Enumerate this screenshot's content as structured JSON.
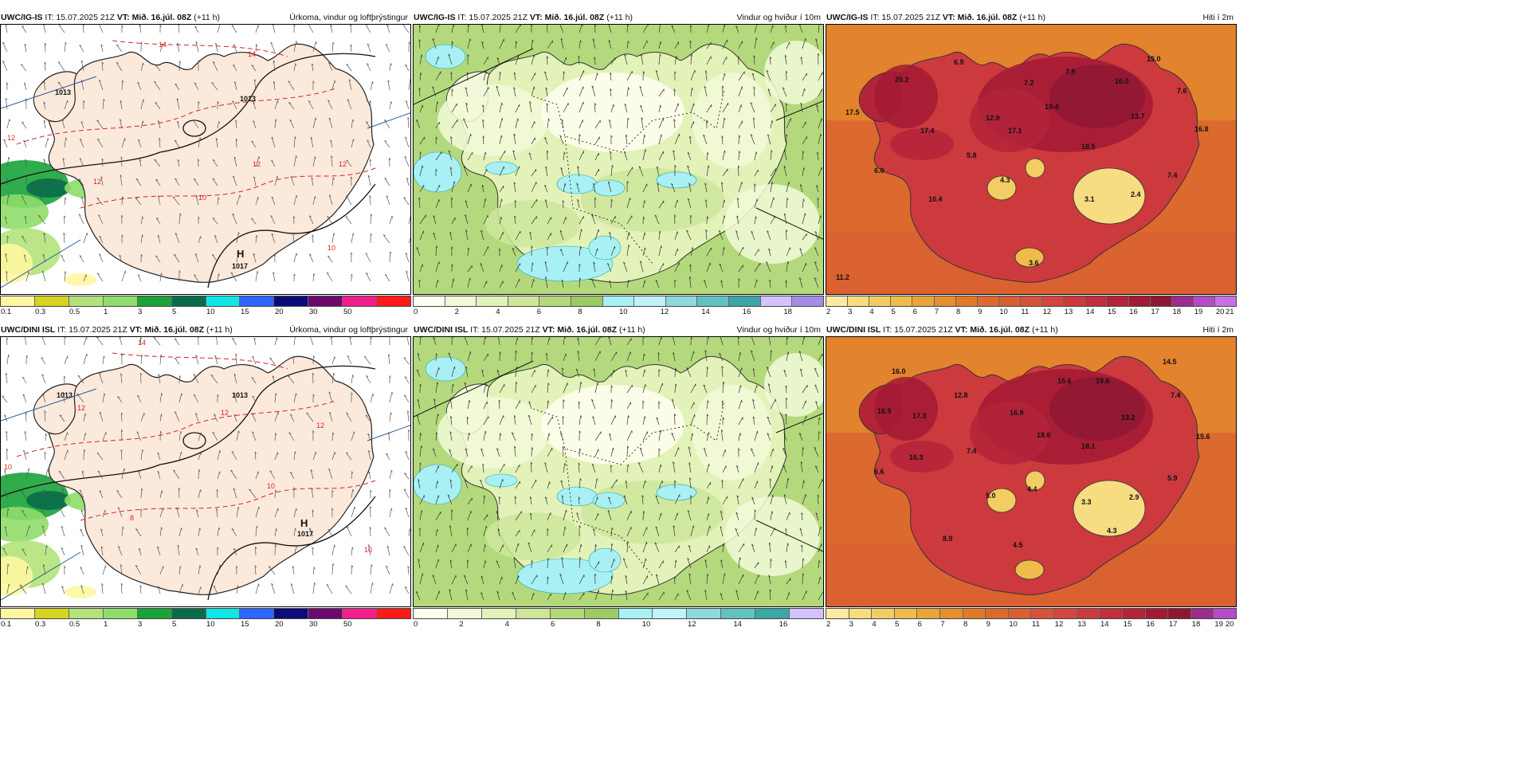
{
  "panels": [
    {
      "id": "p1",
      "model": "UWC/IG-IS",
      "it": "IT: 15.07.2025 21Z",
      "vt_label": "VT:",
      "vt": "Mið. 16.júl. 08Z",
      "lead": "(+11 h)",
      "title": "Úrkoma, vindur og loftþrýstingur",
      "kind": "precip",
      "colors": [
        "#fff7a0",
        "#d7d31f",
        "#b2e37a",
        "#8fdd6a",
        "#19a33a",
        "#0a6b4a",
        "#10e6e6",
        "#2e64ff",
        "#0b0b7a",
        "#6b0a6b",
        "#f21e8c",
        "#ff1a1a"
      ],
      "ticks": [
        "0.1",
        "0.3",
        "0.5",
        "1",
        "3",
        "5",
        "10",
        "15",
        "20",
        "30",
        "50"
      ],
      "labels": [
        {
          "text": "1013",
          "x": 300,
          "y": 96,
          "c": "#111",
          "b": true
        },
        {
          "text": "1013",
          "x": 68,
          "y": 88,
          "c": "#111",
          "b": true
        },
        {
          "text": "14",
          "x": 198,
          "y": 28,
          "c": "#d22"
        },
        {
          "text": "14",
          "x": 310,
          "y": 40,
          "c": "#d22"
        },
        {
          "text": "12",
          "x": 8,
          "y": 145,
          "c": "#d22"
        },
        {
          "text": "12",
          "x": 316,
          "y": 178,
          "c": "#d22"
        },
        {
          "text": "12",
          "x": 424,
          "y": 178,
          "c": "#d22"
        },
        {
          "text": "12",
          "x": 116,
          "y": 200,
          "c": "#d22"
        },
        {
          "text": "10",
          "x": 410,
          "y": 283,
          "c": "#d22"
        },
        {
          "text": "10",
          "x": 248,
          "y": 220,
          "c": "#d22"
        },
        {
          "text": "H",
          "x": 296,
          "y": 292,
          "c": "#111",
          "b": true,
          "s": 13
        },
        {
          "text": "1017",
          "x": 290,
          "y": 306,
          "c": "#111",
          "b": true
        }
      ]
    },
    {
      "id": "p2",
      "model": "UWC/IG-IS",
      "it": "IT: 15.07.2025 21Z",
      "vt_label": "VT:",
      "vt": "Mið. 16.júl. 08Z",
      "lead": "(+11 h)",
      "title": "Vindur og hviður í 10m",
      "kind": "wind",
      "colors": [
        "#fffff0",
        "#f2f9d8",
        "#e3f2b8",
        "#cde69a",
        "#b3d97c",
        "#9ccb64",
        "#a9f0f5",
        "#bff3f7",
        "#8fd9dc",
        "#62c2c2",
        "#3aa7a6",
        "#d4c2ff",
        "#a58be6"
      ],
      "ticks": [
        "0",
        "2",
        "4",
        "6",
        "8",
        "10",
        "12",
        "14",
        "16",
        "18"
      ],
      "labels": []
    },
    {
      "id": "p3",
      "model": "UWC/IG-IS",
      "it": "IT: 15.07.2025 21Z",
      "vt_label": "VT:",
      "vt": "Mið. 16.júl. 08Z",
      "lead": "(+11 h)",
      "title": "Hiti í 2m",
      "kind": "temp",
      "colors": [
        "#fbe9a5",
        "#f7dc82",
        "#f3cd63",
        "#efbb4b",
        "#eaa53a",
        "#e58f2e",
        "#e07a2a",
        "#dc6a2e",
        "#d95e34",
        "#d6523a",
        "#d2463d",
        "#cc3a3e",
        "#c12e3c",
        "#b32438",
        "#a31a34",
        "#8e1732",
        "#9b2e8c",
        "#b24cc7",
        "#c770e6"
      ],
      "ticks": [
        "2",
        "3",
        "4",
        "5",
        "6",
        "7",
        "8",
        "9",
        "10",
        "11",
        "12",
        "13",
        "14",
        "15",
        "16",
        "17",
        "18",
        "19",
        "20",
        "21"
      ],
      "labels": [
        {
          "text": "6.9",
          "x": 160,
          "y": 50,
          "c": "#111",
          "b": true
        },
        {
          "text": "20.2",
          "x": 86,
          "y": 72,
          "c": "#111",
          "b": true
        },
        {
          "text": "7.5",
          "x": 300,
          "y": 62,
          "c": "#111",
          "b": true
        },
        {
          "text": "15.0",
          "x": 402,
          "y": 46,
          "c": "#111",
          "b": true
        },
        {
          "text": "7.2",
          "x": 248,
          "y": 76,
          "c": "#111",
          "b": true
        },
        {
          "text": "16.0",
          "x": 362,
          "y": 74,
          "c": "#111",
          "b": true
        },
        {
          "text": "7.6",
          "x": 440,
          "y": 86,
          "c": "#111",
          "b": true
        },
        {
          "text": "17.5",
          "x": 24,
          "y": 113,
          "c": "#111",
          "b": true
        },
        {
          "text": "19.4",
          "x": 274,
          "y": 106,
          "c": "#111",
          "b": true
        },
        {
          "text": "12.9",
          "x": 200,
          "y": 120,
          "c": "#111",
          "b": true
        },
        {
          "text": "13.7",
          "x": 382,
          "y": 118,
          "c": "#111",
          "b": true
        },
        {
          "text": "17.4",
          "x": 118,
          "y": 136,
          "c": "#111",
          "b": true
        },
        {
          "text": "17.1",
          "x": 228,
          "y": 136,
          "c": "#111",
          "b": true
        },
        {
          "text": "16.8",
          "x": 462,
          "y": 134,
          "c": "#111",
          "b": true
        },
        {
          "text": "18.5",
          "x": 320,
          "y": 156,
          "c": "#111",
          "b": true
        },
        {
          "text": "5.8",
          "x": 176,
          "y": 167,
          "c": "#111",
          "b": true
        },
        {
          "text": "6.0",
          "x": 60,
          "y": 186,
          "c": "#111",
          "b": true
        },
        {
          "text": "4.3",
          "x": 218,
          "y": 198,
          "c": "#111",
          "b": true
        },
        {
          "text": "7.4",
          "x": 428,
          "y": 192,
          "c": "#111",
          "b": true
        },
        {
          "text": "2.4",
          "x": 382,
          "y": 216,
          "c": "#111",
          "b": true
        },
        {
          "text": "3.1",
          "x": 324,
          "y": 222,
          "c": "#111",
          "b": true
        },
        {
          "text": "10.4",
          "x": 128,
          "y": 222,
          "c": "#111",
          "b": true
        },
        {
          "text": "3.6",
          "x": 254,
          "y": 302,
          "c": "#111",
          "b": true
        },
        {
          "text": "11.2",
          "x": 12,
          "y": 320,
          "c": "#111",
          "b": true
        }
      ]
    },
    {
      "id": "p4",
      "model": "UWC/DINI ISL",
      "it": "IT: 15.07.2025 21Z",
      "vt_label": "VT:",
      "vt": "Mið. 16.júl. 08Z",
      "lead": "(+11 h)",
      "title": "Úrkoma, vindur og loftþrýstingur",
      "kind": "precip",
      "colors": [
        "#fff7a0",
        "#d7d31f",
        "#b2e37a",
        "#8fdd6a",
        "#19a33a",
        "#0a6b4a",
        "#10e6e6",
        "#2e64ff",
        "#0b0b7a",
        "#6b0a6b",
        "#f21e8c",
        "#ff1a1a"
      ],
      "ticks": [
        "0.1",
        "0.3",
        "0.5",
        "1",
        "3",
        "5",
        "10",
        "15",
        "20",
        "30",
        "50"
      ],
      "labels": [
        {
          "text": "1013",
          "x": 290,
          "y": 76,
          "c": "#111",
          "b": true
        },
        {
          "text": "1013",
          "x": 70,
          "y": 76,
          "c": "#111",
          "b": true
        },
        {
          "text": "14",
          "x": 172,
          "y": 10,
          "c": "#d22"
        },
        {
          "text": "12",
          "x": 96,
          "y": 92,
          "c": "#d22"
        },
        {
          "text": "12",
          "x": 276,
          "y": 98,
          "c": "#d22"
        },
        {
          "text": "12",
          "x": 396,
          "y": 114,
          "c": "#d22"
        },
        {
          "text": "10",
          "x": 4,
          "y": 166,
          "c": "#d22"
        },
        {
          "text": "10",
          "x": 334,
          "y": 190,
          "c": "#d22"
        },
        {
          "text": "10",
          "x": 456,
          "y": 270,
          "c": "#d22"
        },
        {
          "text": "8",
          "x": 162,
          "y": 230,
          "c": "#d22"
        },
        {
          "text": "H",
          "x": 376,
          "y": 238,
          "c": "#111",
          "b": true,
          "s": 13
        },
        {
          "text": "1017",
          "x": 372,
          "y": 250,
          "c": "#111",
          "b": true
        }
      ]
    },
    {
      "id": "p5",
      "model": "UWC/DINI ISL",
      "it": "IT: 15.07.2025 21Z",
      "vt_label": "VT:",
      "vt": "Mið. 16.júl. 08Z",
      "lead": "(+11 h)",
      "title": "Vindur og hviður í 10m",
      "kind": "wind",
      "colors": [
        "#fffff0",
        "#f2f9d8",
        "#e3f2b8",
        "#cde69a",
        "#b3d97c",
        "#9ccb64",
        "#a9f0f5",
        "#bff3f7",
        "#8fd9dc",
        "#62c2c2",
        "#3aa7a6",
        "#d4c2ff"
      ],
      "ticks": [
        "0",
        "2",
        "4",
        "6",
        "8",
        "10",
        "12",
        "14",
        "16"
      ],
      "labels": []
    },
    {
      "id": "p6",
      "model": "UWC/DINI ISL",
      "it": "IT: 15.07.2025 21Z",
      "vt_label": "VT:",
      "vt": "Mið. 16.júl. 08Z",
      "lead": "(+11 h)",
      "title": "Hiti í 2m",
      "kind": "temp",
      "colors": [
        "#fbe9a5",
        "#f7dc82",
        "#f3cd63",
        "#efbb4b",
        "#eaa53a",
        "#e58f2e",
        "#e07a2a",
        "#dc6a2e",
        "#d95e34",
        "#d6523a",
        "#d2463d",
        "#cc3a3e",
        "#c12e3c",
        "#b32438",
        "#a31a34",
        "#8e1732",
        "#9b2e8c",
        "#b24cc7"
      ],
      "ticks": [
        "2",
        "3",
        "4",
        "5",
        "6",
        "7",
        "8",
        "9",
        "10",
        "11",
        "12",
        "13",
        "14",
        "15",
        "16",
        "17",
        "18",
        "19",
        "20"
      ],
      "labels": [
        {
          "text": "14.5",
          "x": 422,
          "y": 34,
          "c": "#111",
          "b": true
        },
        {
          "text": "16.0",
          "x": 82,
          "y": 46,
          "c": "#111",
          "b": true
        },
        {
          "text": "15.6",
          "x": 290,
          "y": 58,
          "c": "#111",
          "b": true
        },
        {
          "text": "19.6",
          "x": 338,
          "y": 58,
          "c": "#111",
          "b": true
        },
        {
          "text": "7.4",
          "x": 432,
          "y": 76,
          "c": "#111",
          "b": true
        },
        {
          "text": "12.8",
          "x": 160,
          "y": 76,
          "c": "#111",
          "b": true
        },
        {
          "text": "16.5",
          "x": 64,
          "y": 96,
          "c": "#111",
          "b": true
        },
        {
          "text": "16.9",
          "x": 230,
          "y": 98,
          "c": "#111",
          "b": true
        },
        {
          "text": "17.3",
          "x": 108,
          "y": 102,
          "c": "#111",
          "b": true
        },
        {
          "text": "13.2",
          "x": 370,
          "y": 104,
          "c": "#111",
          "b": true
        },
        {
          "text": "15.6",
          "x": 464,
          "y": 128,
          "c": "#111",
          "b": true
        },
        {
          "text": "18.6",
          "x": 264,
          "y": 126,
          "c": "#111",
          "b": true
        },
        {
          "text": "18.1",
          "x": 320,
          "y": 140,
          "c": "#111",
          "b": true
        },
        {
          "text": "7.4",
          "x": 176,
          "y": 146,
          "c": "#111",
          "b": true
        },
        {
          "text": "16.3",
          "x": 104,
          "y": 154,
          "c": "#111",
          "b": true
        },
        {
          "text": "6.6",
          "x": 60,
          "y": 172,
          "c": "#111",
          "b": true
        },
        {
          "text": "5.9",
          "x": 428,
          "y": 180,
          "c": "#111",
          "b": true
        },
        {
          "text": "4.4",
          "x": 252,
          "y": 194,
          "c": "#111",
          "b": true
        },
        {
          "text": "5.0",
          "x": 200,
          "y": 202,
          "c": "#111",
          "b": true
        },
        {
          "text": "2.9",
          "x": 380,
          "y": 204,
          "c": "#111",
          "b": true
        },
        {
          "text": "3.3",
          "x": 320,
          "y": 210,
          "c": "#111",
          "b": true
        },
        {
          "text": "4.3",
          "x": 352,
          "y": 246,
          "c": "#111",
          "b": true
        },
        {
          "text": "8.9",
          "x": 146,
          "y": 256,
          "c": "#111",
          "b": true
        },
        {
          "text": "4.5",
          "x": 234,
          "y": 264,
          "c": "#111",
          "b": true
        }
      ]
    }
  ]
}
